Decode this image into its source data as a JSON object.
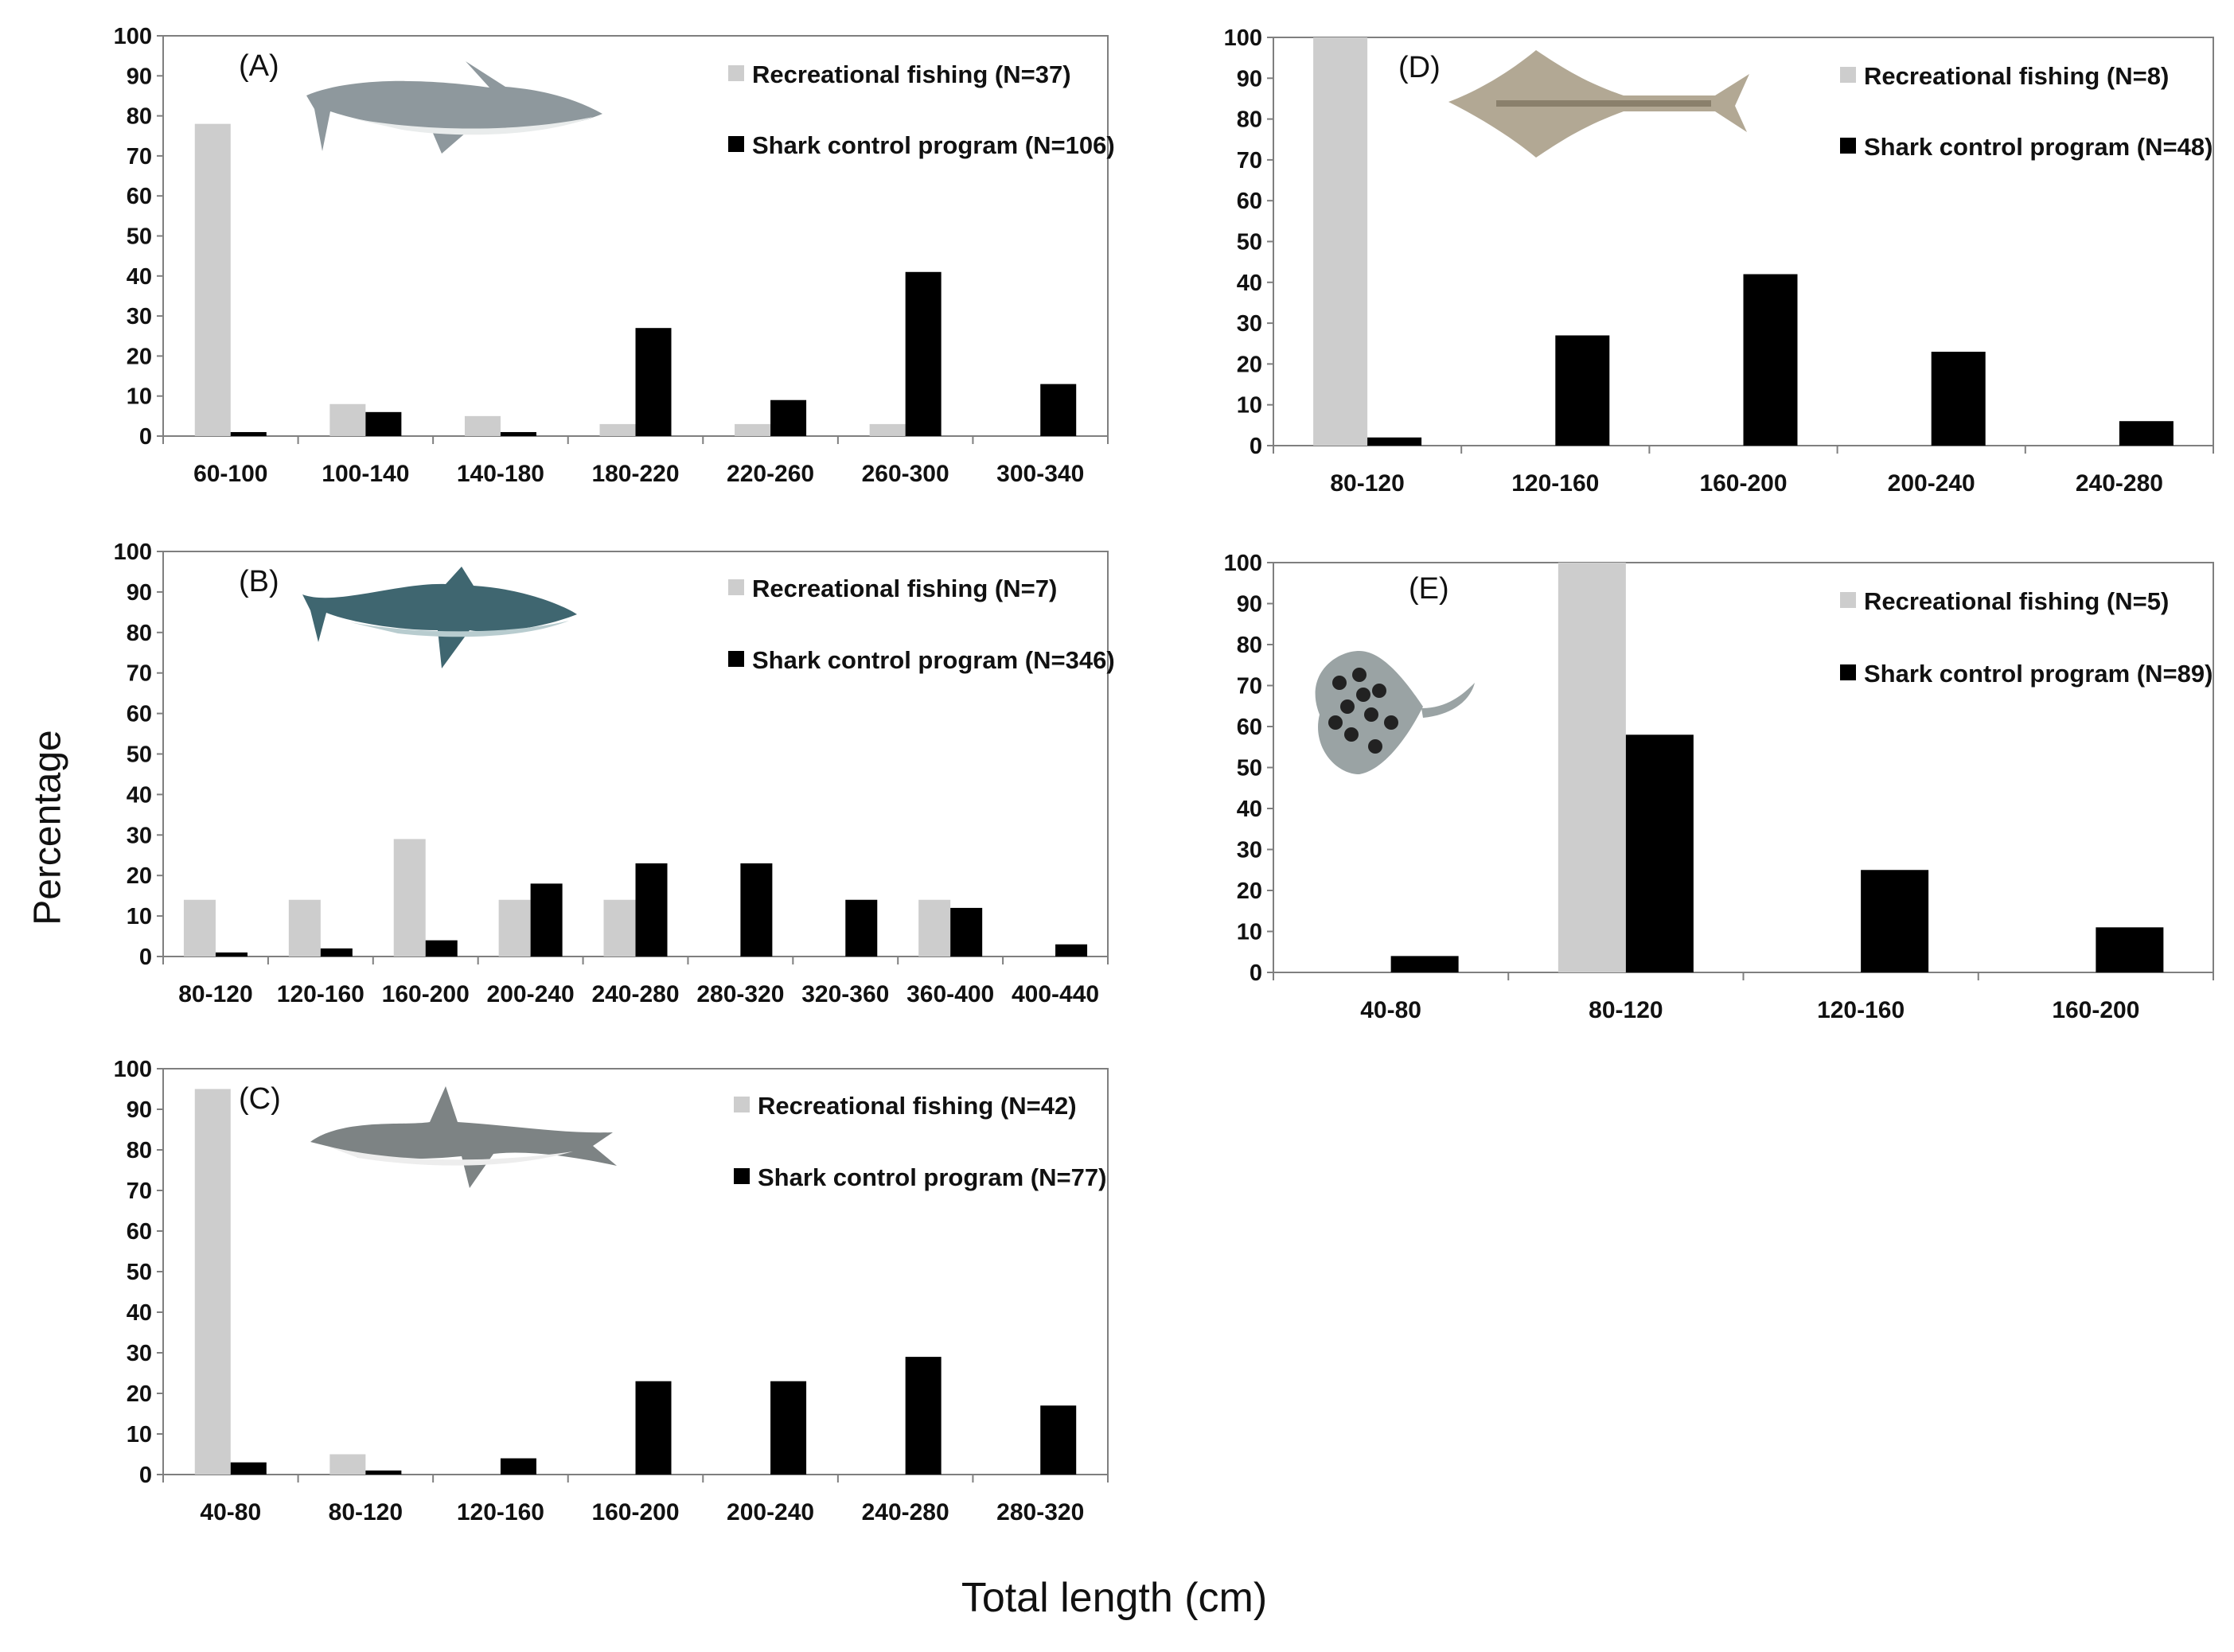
{
  "figure": {
    "ylabel": "Percentage",
    "xlabel": "Total length (cm)"
  },
  "colors": {
    "recreational": "#cdcdcd",
    "control": "#000000",
    "axis": "#7f7f7f",
    "text": "#111111"
  },
  "chart_data": [
    {
      "panel": "(A)",
      "type": "bar",
      "ylim": [
        0,
        100
      ],
      "yticks": [
        0,
        10,
        20,
        30,
        40,
        50,
        60,
        70,
        80,
        90,
        100
      ],
      "categories": [
        "60-100",
        "100-140",
        "140-180",
        "180-220",
        "220-260",
        "260-300",
        "300-340"
      ],
      "series": [
        {
          "name": "Recreational fishing (N=37)",
          "key": "recreational",
          "values": [
            78,
            8,
            5,
            3,
            3,
            3,
            0
          ]
        },
        {
          "name": "Shark control program (N=106)",
          "key": "control",
          "values": [
            1,
            6,
            1,
            27,
            9,
            41,
            13
          ]
        }
      ],
      "icon": "bull-shark-icon"
    },
    {
      "panel": "(B)",
      "type": "bar",
      "ylim": [
        0,
        100
      ],
      "yticks": [
        0,
        10,
        20,
        30,
        40,
        50,
        60,
        70,
        80,
        90,
        100
      ],
      "categories": [
        "80-120",
        "120-160",
        "160-200",
        "200-240",
        "240-280",
        "280-320",
        "320-360",
        "360-400",
        "400-440"
      ],
      "series": [
        {
          "name": "Recreational fishing (N=7)",
          "key": "recreational",
          "values": [
            14,
            14,
            29,
            14,
            14,
            0,
            0,
            14,
            0
          ]
        },
        {
          "name": "Shark control program (N=346)",
          "key": "control",
          "values": [
            1,
            2,
            4,
            18,
            23,
            23,
            14,
            12,
            3
          ]
        }
      ],
      "icon": "tiger-shark-icon"
    },
    {
      "panel": "(C)",
      "type": "bar",
      "ylim": [
        0,
        100
      ],
      "yticks": [
        0,
        10,
        20,
        30,
        40,
        50,
        60,
        70,
        80,
        90,
        100
      ],
      "categories": [
        "40-80",
        "80-120",
        "120-160",
        "160-200",
        "200-240",
        "240-280",
        "280-320"
      ],
      "series": [
        {
          "name": "Recreational fishing (N=42)",
          "key": "recreational",
          "values": [
            95,
            5,
            0,
            0,
            0,
            0,
            0
          ]
        },
        {
          "name": "Shark control program (N=77)",
          "key": "control",
          "values": [
            3,
            1,
            4,
            23,
            23,
            29,
            17
          ]
        }
      ],
      "icon": "hammerhead-shark-icon"
    },
    {
      "panel": "(D)",
      "type": "bar",
      "ylim": [
        0,
        100
      ],
      "yticks": [
        0,
        10,
        20,
        30,
        40,
        50,
        60,
        70,
        80,
        90,
        100
      ],
      "categories": [
        "80-120",
        "120-160",
        "160-200",
        "200-240",
        "240-280"
      ],
      "series": [
        {
          "name": "Recreational fishing (N=8)",
          "key": "recreational",
          "values": [
            100,
            0,
            0,
            0,
            0
          ]
        },
        {
          "name": "Shark control program (N=48)",
          "key": "control",
          "values": [
            2,
            27,
            42,
            23,
            6
          ]
        }
      ],
      "icon": "shovelnose-ray-icon"
    },
    {
      "panel": "(E)",
      "type": "bar",
      "ylim": [
        0,
        100
      ],
      "yticks": [
        0,
        10,
        20,
        30,
        40,
        50,
        60,
        70,
        80,
        90,
        100
      ],
      "categories": [
        "40-80",
        "80-120",
        "120-160",
        "160-200"
      ],
      "series": [
        {
          "name": "Recreational fishing (N=5)",
          "key": "recreational",
          "values": [
            0,
            100,
            0,
            0
          ]
        },
        {
          "name": "Shark control program (N=89)",
          "key": "control",
          "values": [
            4,
            58,
            25,
            11
          ]
        }
      ],
      "icon": "stingray-icon"
    }
  ]
}
